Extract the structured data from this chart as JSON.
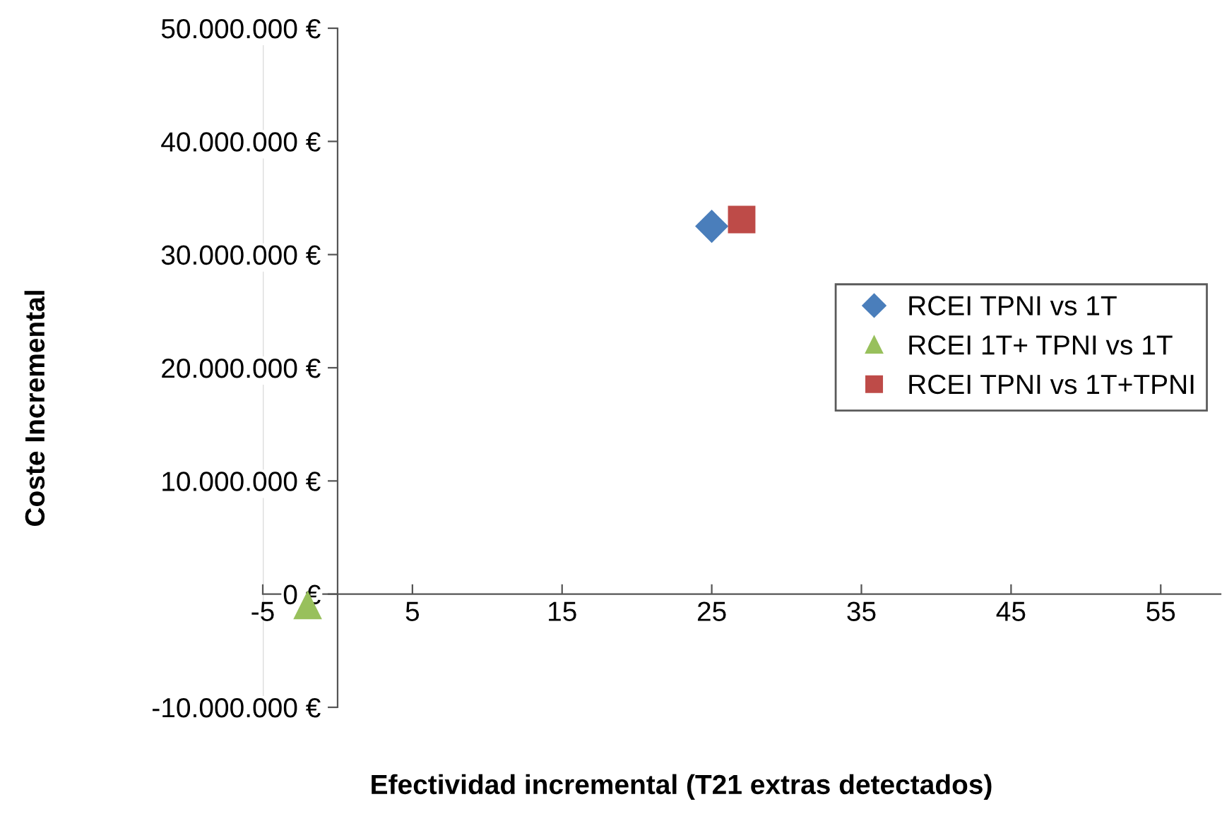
{
  "chart_data": {
    "type": "scatter",
    "xlabel": "Efectividad incremental (T21 extras detectados)",
    "ylabel": "Coste Incremental",
    "series": [
      {
        "name": "RCEI TPNI vs 1T",
        "color": "#4a7ebb",
        "marker": "diamond",
        "x": [
          25
        ],
        "values": [
          32500000
        ]
      },
      {
        "name": "RCEI 1T+ TPNI vs 1T",
        "color": "#98c05c",
        "marker": "triangle",
        "x": [
          -2
        ],
        "values": [
          -1000000
        ]
      },
      {
        "name": "RCEI TPNI vs 1T+TPNI",
        "color": "#be4b48",
        "marker": "square",
        "x": [
          27
        ],
        "values": [
          33100000
        ]
      }
    ],
    "xlim": [
      -5,
      59
    ],
    "xticks": [
      -5,
      5,
      15,
      25,
      35,
      45,
      55
    ],
    "ylim": [
      -10000000,
      50000000
    ],
    "yticks": [
      {
        "value": -10000000,
        "label": "-10.000.000 €"
      },
      {
        "value": 0,
        "label": "0 €"
      },
      {
        "value": 10000000,
        "label": "10.000.000 €"
      },
      {
        "value": 20000000,
        "label": "20.000.000 €"
      },
      {
        "value": 30000000,
        "label": "30.000.000 €"
      },
      {
        "value": 40000000,
        "label": "40.000.000 €"
      },
      {
        "value": 50000000,
        "label": "50.000.000 €"
      }
    ],
    "grid": false,
    "legend": "right"
  }
}
